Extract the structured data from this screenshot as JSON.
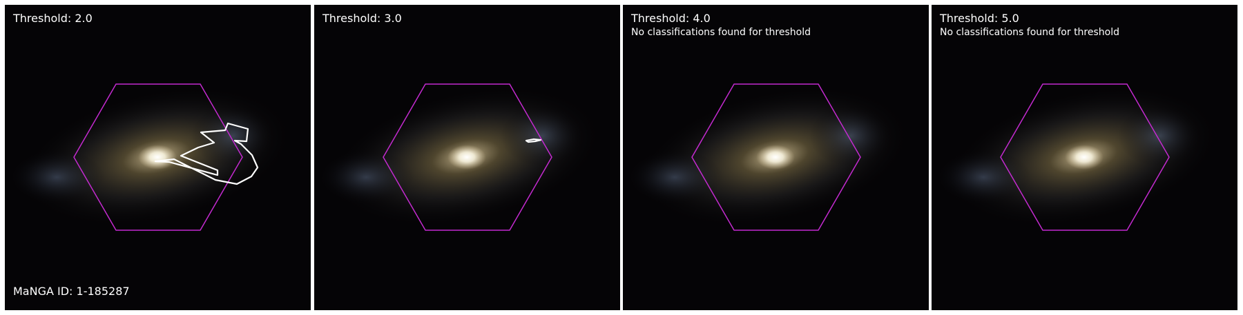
{
  "panels": [
    {
      "title": "Threshold: 2.0",
      "note": "",
      "footer": "MaNGA ID: 1-185287",
      "has_contour": true,
      "contour": "large"
    },
    {
      "title": "Threshold: 3.0",
      "note": "",
      "footer": "",
      "has_contour": true,
      "contour": "small"
    },
    {
      "title": "Threshold: 4.0",
      "note": "No classifications found for threshold",
      "footer": "",
      "has_contour": false,
      "contour": ""
    },
    {
      "title": "Threshold: 5.0",
      "note": "No classifications found for threshold",
      "footer": "",
      "has_contour": false,
      "contour": ""
    }
  ],
  "colors": {
    "hexagon": "#c42ad0",
    "contour": "#ffffff",
    "background": "#050406",
    "galaxy_core": "#fffbe8",
    "galaxy_halo": "#8a7a4e",
    "galaxy_arm": "#5a6a86"
  }
}
